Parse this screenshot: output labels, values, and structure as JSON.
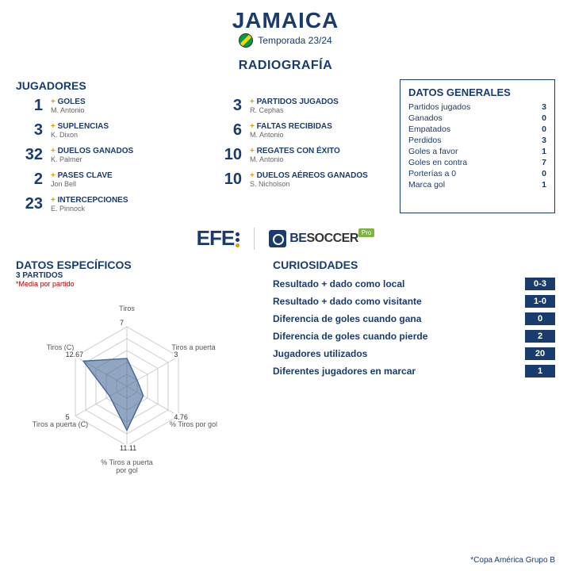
{
  "header": {
    "team": "JAMAICA",
    "season": "Temporada 23/24",
    "flag_colors": [
      "#009b3a",
      "#fed100",
      "#000000"
    ]
  },
  "section_title": "RADIOGRAFÍA",
  "players_section": {
    "title": "JUGADORES",
    "left": [
      {
        "value": "1",
        "label": "GOLES",
        "player": "M. Antonio"
      },
      {
        "value": "3",
        "label": "SUPLENCIAS",
        "player": "K. Dixon"
      },
      {
        "value": "32",
        "label": "DUELOS GANADOS",
        "player": "K. Palmer"
      },
      {
        "value": "2",
        "label": "PASES CLAVE",
        "player": "Jon Bell"
      },
      {
        "value": "23",
        "label": "INTERCEPCIONES",
        "player": "E. Pinnock"
      }
    ],
    "right": [
      {
        "value": "3",
        "label": "PARTIDOS JUGADOS",
        "player": "R. Cephas"
      },
      {
        "value": "6",
        "label": "FALTAS RECIBIDAS",
        "player": "M. Antonio"
      },
      {
        "value": "10",
        "label": "REGATES CON ÉXITO",
        "player": "M. Antonio"
      },
      {
        "value": "10",
        "label": "DUELOS AÉREOS GANADOS",
        "player": "S. Nicholson"
      }
    ]
  },
  "general": {
    "title": "DATOS GENERALES",
    "rows": [
      {
        "label": "Partidos jugados",
        "value": "3"
      },
      {
        "label": "Ganados",
        "value": "0"
      },
      {
        "label": "Empatados",
        "value": "0"
      },
      {
        "label": "Perdidos",
        "value": "3"
      },
      {
        "label": "Goles a favor",
        "value": "1"
      },
      {
        "label": "Goles en contra",
        "value": "7"
      },
      {
        "label": "Porterías a 0",
        "value": "0"
      },
      {
        "label": "Marca gol",
        "value": "1"
      }
    ]
  },
  "logos": {
    "efe": "EFE",
    "besoccer": "BESOCCER",
    "pro": "Pro"
  },
  "specific": {
    "title": "DATOS ESPECÍFICOS",
    "subtitle": "3 PARTIDOS",
    "note": "*Media por partido",
    "radar": {
      "type": "radar",
      "axes": [
        "Tiros",
        "Tiros a puerta",
        "% Tiros por gol",
        "% Tiros a puerta por gol",
        "Tiros a puerta (C)",
        "Tiros (C)"
      ],
      "values": [
        7,
        3,
        4.76,
        11.11,
        5,
        12.67
      ],
      "max": 15,
      "fill_color": "#4a6a9a",
      "fill_opacity": 0.6,
      "grid_color": "#cccccc",
      "label_fontsize": 9,
      "label_color": "#555555",
      "levels": 5
    }
  },
  "curiosities": {
    "title": "CURIOSIDADES",
    "rows": [
      {
        "label": "Resultado + dado como local",
        "value": "0-3"
      },
      {
        "label": "Resultado + dado como visitante",
        "value": "1-0"
      },
      {
        "label": "Diferencia de goles cuando gana",
        "value": "0"
      },
      {
        "label": "Diferencia de goles cuando pierde",
        "value": "2"
      },
      {
        "label": "Jugadores utilizados",
        "value": "20"
      },
      {
        "label": "Diferentes jugadores en marcar",
        "value": "1"
      }
    ]
  },
  "footnote": "*Copa América Grupo B",
  "colors": {
    "primary": "#1a3b6e",
    "accent": "#d8a000",
    "text_muted": "#666666",
    "background": "#ffffff"
  }
}
